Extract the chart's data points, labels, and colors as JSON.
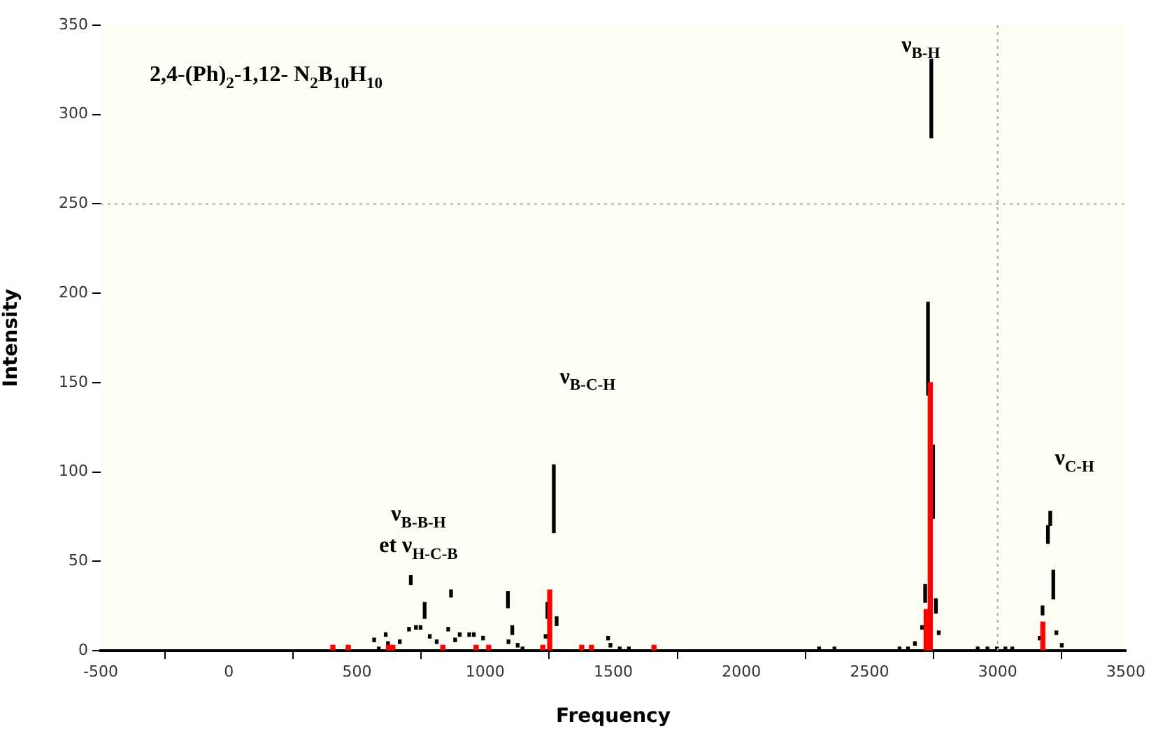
{
  "chart_data": {
    "type": "bar",
    "title": "2,4-(Ph)$_{2}$-1,12- N$_{2}$B$_{10}$H$_{10}$",
    "xlabel": "Frequency",
    "ylabel": "Intensity",
    "xlim": [
      -500,
      3500
    ],
    "xticks": [
      -500,
      0,
      500,
      1000,
      1500,
      2000,
      2500,
      3000,
      3500
    ],
    "ylim": [
      0,
      350
    ],
    "yticks": [
      0,
      50,
      100,
      150,
      200,
      250,
      300,
      350
    ],
    "grid": false,
    "legend": false,
    "ref_lines": [
      {
        "axis": "x",
        "value": 3000,
        "color": "#aaaaaa",
        "line_style": "dotted"
      },
      {
        "axis": "y",
        "value": 250,
        "color": "#aaaaaa",
        "line_style": "dotted"
      }
    ],
    "annotations": [
      "ν$_{B-H}$",
      "ν$_{B-C-H}$",
      "ν$_{B-B-H}$",
      "et ν$_{H-C-B}$",
      "ν$_{C-H}$"
    ],
    "series": [
      {
        "color": "#ff0000",
        "x": [
          406,
          466,
          623,
          640,
          835,
          965,
          1014,
          1225,
          1252,
          1377,
          1415,
          1659,
          2721,
          2737,
          3176
        ],
        "values": [
          3,
          3,
          3,
          3,
          3,
          3,
          3,
          3,
          34,
          3,
          3,
          3,
          23,
          150,
          16
        ]
      },
      {
        "color": "#000000",
        "x": [
          567,
          585,
          612,
          621,
          667,
          703,
          710,
          730,
          748,
          764,
          784,
          811,
          856,
          867,
          883,
          901,
          938,
          956,
          992,
          1089,
          1091,
          1106,
          1127,
          1146,
          1236,
          1243,
          1268,
          1279,
          1480,
          1489,
          1525,
          1561,
          2303,
          2363,
          2617,
          2650,
          2677,
          2705,
          2717,
          2728,
          2741,
          2748,
          2759,
          2770,
          2922,
          2960,
          2997,
          3030,
          3057,
          3164,
          3175,
          3196,
          3205,
          3217,
          3229,
          3250
        ],
        "base": [
          5,
          0,
          8,
          3,
          4,
          11,
          37,
          12,
          12,
          18,
          7,
          4,
          11,
          30,
          5,
          8,
          8,
          8,
          6,
          24,
          4,
          9,
          2,
          0,
          7,
          18,
          66,
          14,
          6,
          2,
          0,
          0,
          0,
          0,
          0,
          0,
          3,
          12,
          27,
          143,
          287,
          74,
          21,
          9,
          0,
          0,
          0,
          0,
          0,
          6,
          20,
          60,
          70,
          29,
          9,
          2
        ],
        "values": [
          2,
          2,
          2,
          2,
          2,
          2,
          5,
          2,
          2,
          9,
          2,
          2,
          2,
          4,
          2,
          2,
          2,
          2,
          2,
          9,
          2,
          5,
          2,
          2,
          2,
          9,
          38,
          5,
          2,
          2,
          2,
          2,
          2,
          2,
          2,
          2,
          2,
          2,
          10,
          52,
          44,
          41,
          8,
          2,
          2,
          2,
          2,
          2,
          2,
          2,
          5,
          10,
          8,
          16,
          2,
          2
        ]
      }
    ]
  }
}
